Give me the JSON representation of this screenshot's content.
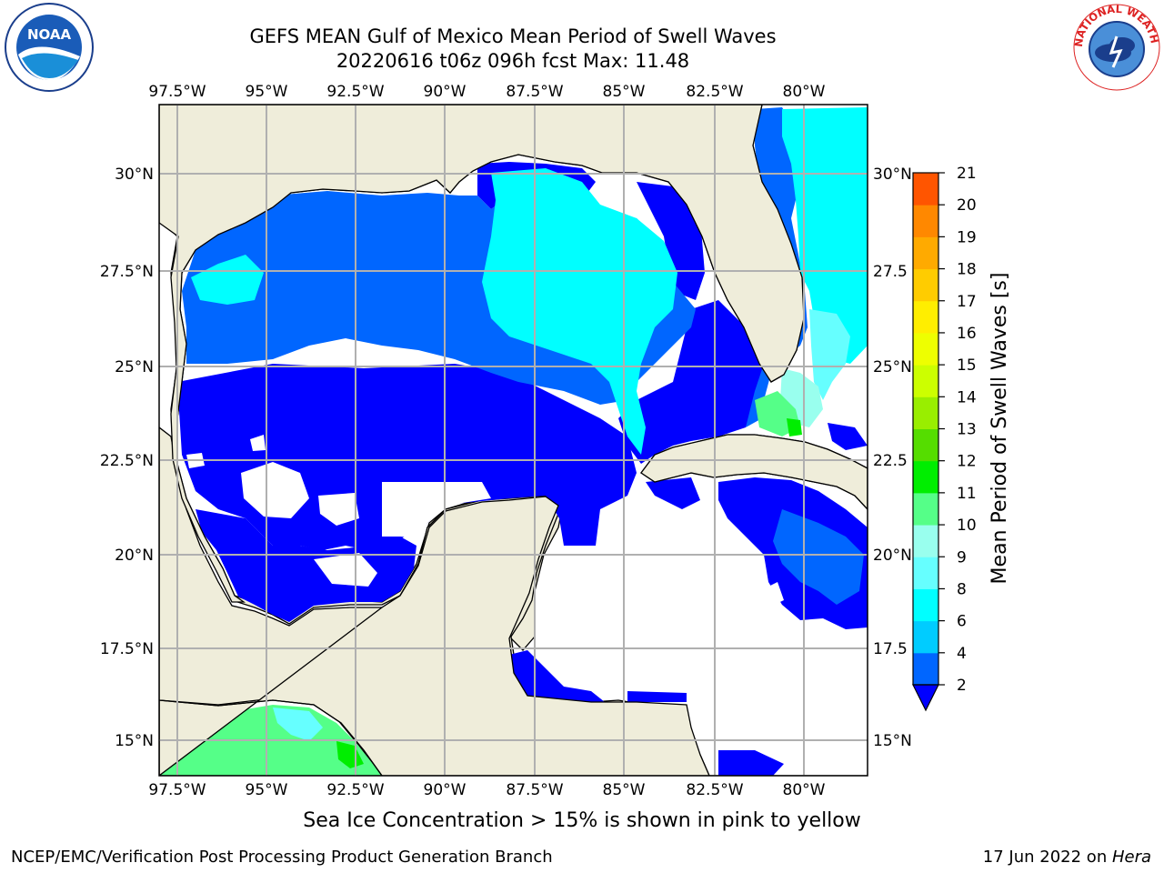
{
  "title": {
    "line1": "GEFS MEAN Gulf of Mexico Mean Period of Swell Waves",
    "line2": "20220616 t06z 096h fcst   Max: 11.48"
  },
  "map": {
    "lon_labels": [
      "97.5°W",
      "95°W",
      "92.5°W",
      "90°W",
      "87.5°W",
      "85°W",
      "82.5°W",
      "80°W"
    ],
    "lat_labels_left": [
      "30°N",
      "27.5°N",
      "25°N",
      "22.5°N",
      "20°N",
      "17.5°N",
      "15°N"
    ],
    "lat_labels_right": [
      "30°N",
      "27.5",
      "25°N",
      "22.5",
      "20°N",
      "17.5",
      "15°N"
    ],
    "land_color": "#efedda",
    "grid_color": "#b0b0b0"
  },
  "colorbar": {
    "label": "Mean Period of Swell Waves [s]",
    "ticks": [
      "2",
      "4",
      "6",
      "8",
      "9",
      "10",
      "11",
      "12",
      "13",
      "14",
      "15",
      "16",
      "17",
      "18",
      "19",
      "20",
      "21"
    ],
    "colors": [
      "#0066ff",
      "#00ccff",
      "#00ffff",
      "#66ffff",
      "#99ffee",
      "#55ff88",
      "#00ee00",
      "#55dd00",
      "#99ee00",
      "#ccff00",
      "#eeff00",
      "#ffee00",
      "#ffcc00",
      "#ffaa00",
      "#ff8800",
      "#ff5500",
      "#ff2200",
      "#ff0000"
    ],
    "extend_color": "#0000ff"
  },
  "footer": {
    "note": "Sea Ice Concentration > 15% is shown in pink to yellow",
    "left": "NCEP/EMC/Verification Post Processing Product Generation Branch",
    "right_date": "17 Jun 2022 on ",
    "right_host": "Hera"
  },
  "logos": {
    "noaa": "NOAA",
    "nws_arc": "NATIONAL WEATHER SERVICE"
  }
}
